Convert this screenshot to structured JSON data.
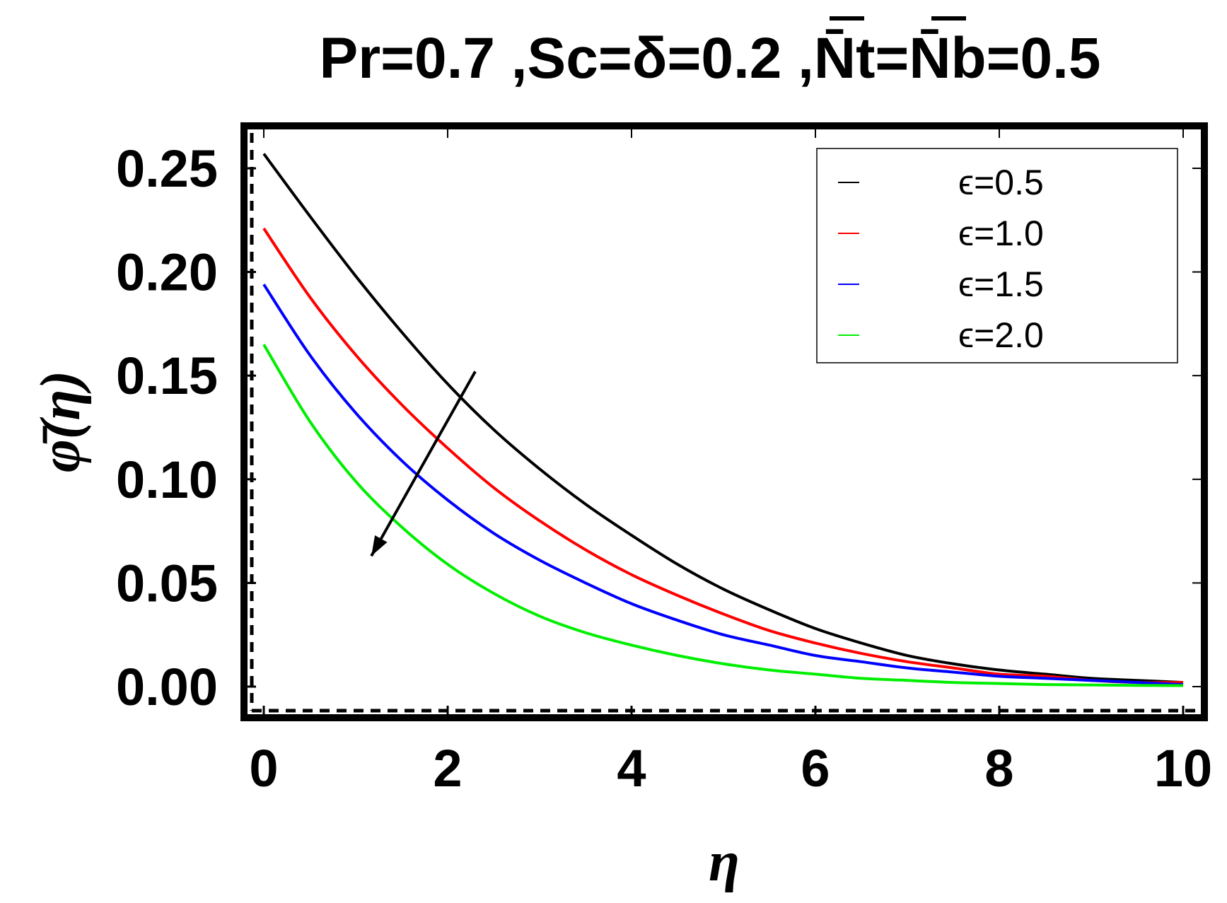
{
  "chart_data": {
    "type": "line",
    "title": "Pr=0.7 ,Sc=δ=0.2 ,N̄t=N̄b=0.5",
    "xlabel": "η",
    "ylabel": "φ̄(η)",
    "xlim": [
      0,
      10
    ],
    "ylim": [
      -0.008,
      0.27
    ],
    "xticks": [
      "0",
      "2",
      "4",
      "6",
      "8",
      "10"
    ],
    "xtick_values": [
      0,
      2,
      4,
      6,
      8,
      10
    ],
    "yticks": [
      "0.00",
      "0.05",
      "0.10",
      "0.15",
      "0.20",
      "0.25"
    ],
    "ytick_values": [
      0,
      0.05,
      0.1,
      0.15,
      0.2,
      0.25
    ],
    "grid": false,
    "legend_position": "top-right",
    "series": [
      {
        "name": "ϵ=0.5",
        "color": "#000000",
        "x": [
          0,
          0.5,
          1,
          1.5,
          2,
          2.5,
          3,
          3.5,
          4,
          4.5,
          5,
          5.5,
          6,
          6.5,
          7,
          7.5,
          8,
          8.5,
          9,
          9.5,
          10
        ],
        "y": [
          0.257,
          0.227,
          0.198,
          0.171,
          0.146,
          0.124,
          0.105,
          0.088,
          0.073,
          0.059,
          0.047,
          0.037,
          0.028,
          0.021,
          0.015,
          0.011,
          0.008,
          0.006,
          0.004,
          0.003,
          0.002
        ]
      },
      {
        "name": "ϵ=1.0",
        "color": "#ff0000",
        "x": [
          0,
          0.5,
          1,
          1.5,
          2,
          2.5,
          3,
          3.5,
          4,
          4.5,
          5,
          5.5,
          6,
          6.5,
          7,
          7.5,
          8,
          8.5,
          9,
          9.5,
          10
        ],
        "y": [
          0.221,
          0.188,
          0.16,
          0.136,
          0.115,
          0.096,
          0.08,
          0.066,
          0.054,
          0.044,
          0.035,
          0.027,
          0.021,
          0.016,
          0.012,
          0.009,
          0.006,
          0.005,
          0.003,
          0.002,
          0.002
        ]
      },
      {
        "name": "ϵ=1.5",
        "color": "#0000ff",
        "x": [
          0,
          0.5,
          1,
          1.5,
          2,
          2.5,
          3,
          3.5,
          4,
          4.5,
          5,
          5.5,
          6,
          6.5,
          7,
          7.5,
          8,
          8.5,
          9,
          9.5,
          10
        ],
        "y": [
          0.194,
          0.16,
          0.132,
          0.109,
          0.09,
          0.074,
          0.061,
          0.05,
          0.04,
          0.032,
          0.025,
          0.02,
          0.015,
          0.012,
          0.009,
          0.007,
          0.005,
          0.004,
          0.003,
          0.002,
          0.001
        ]
      },
      {
        "name": "ϵ=2.0",
        "color": "#00ee00",
        "x": [
          0,
          0.5,
          1,
          1.5,
          2,
          2.5,
          3,
          3.5,
          4,
          4.5,
          5,
          5.5,
          6,
          6.5,
          7,
          7.5,
          8,
          8.5,
          9,
          9.5,
          10
        ],
        "y": [
          0.165,
          0.128,
          0.099,
          0.077,
          0.059,
          0.045,
          0.034,
          0.026,
          0.02,
          0.015,
          0.011,
          0.008,
          0.006,
          0.004,
          0.003,
          0.002,
          0.0015,
          0.001,
          0.0008,
          0.0006,
          0.0005
        ]
      }
    ],
    "annotations": [
      {
        "type": "arrow",
        "meaning": "direction of increasing ϵ",
        "from": [
          2.3,
          0.152
        ],
        "to": [
          1.17,
          0.063
        ]
      }
    ]
  }
}
